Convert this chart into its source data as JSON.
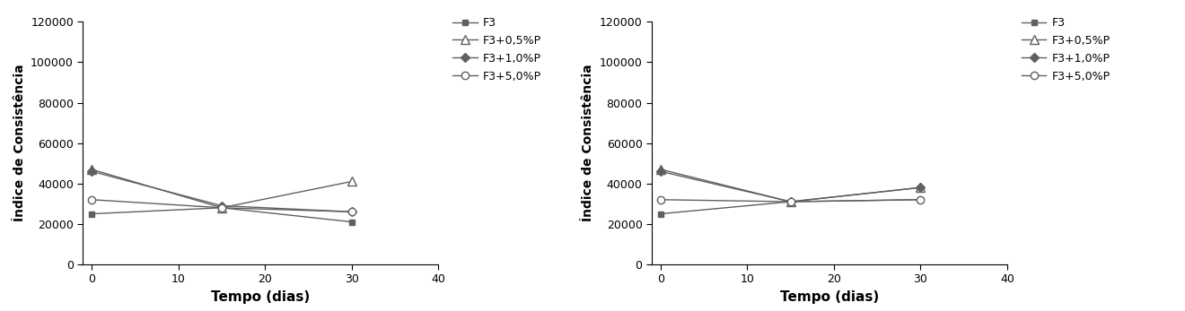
{
  "time": [
    0,
    15,
    30
  ],
  "xlim": [
    -1,
    40
  ],
  "ylim": [
    0,
    120000
  ],
  "yticks": [
    0,
    20000,
    40000,
    60000,
    80000,
    100000,
    120000
  ],
  "xticks": [
    0,
    10,
    20,
    30,
    40
  ],
  "xlabel": "Tempo (dias)",
  "ylabel": "Índice de Consistência",
  "legend_labels": [
    "F3",
    "F3+0,5%P",
    "F3+1,0%P",
    "F3+5,0%P"
  ],
  "left_chart": {
    "F3": [
      25000,
      28000,
      21000
    ],
    "F3+0.5P": [
      47000,
      28000,
      41000
    ],
    "F3+1.0P": [
      46000,
      29000,
      26000
    ],
    "F3+5.0P": [
      32000,
      28000,
      26000
    ]
  },
  "right_chart": {
    "F3": [
      25000,
      31000,
      32000
    ],
    "F3+0.5P": [
      47000,
      31000,
      38000
    ],
    "F3+1.0P": [
      46000,
      31000,
      38000
    ],
    "F3+5.0P": [
      32000,
      31000,
      32000
    ]
  },
  "line_color": "#606060",
  "background_color": "#ffffff",
  "xlabel_fontsize": 11,
  "ylabel_fontsize": 10,
  "tick_fontsize": 9,
  "legend_fontsize": 9
}
